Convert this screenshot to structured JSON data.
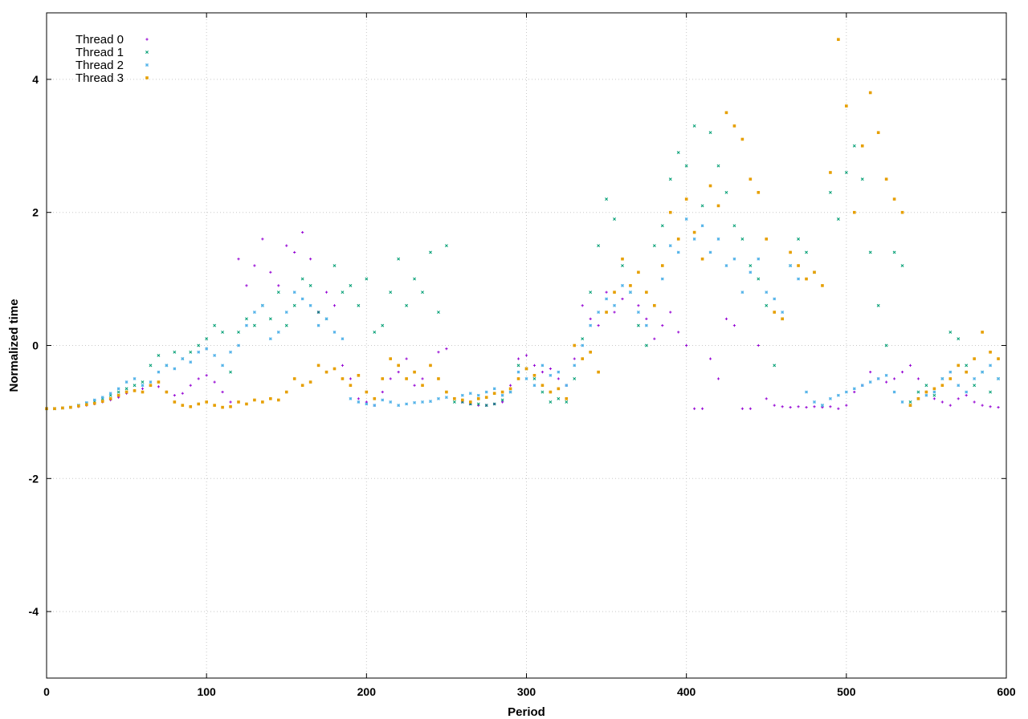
{
  "chart_data": {
    "type": "scatter",
    "title": "",
    "xlabel": "Period",
    "ylabel": "Normalized time",
    "xlim": [
      0,
      600
    ],
    "ylim": [
      -5,
      5
    ],
    "xticks": [
      0,
      100,
      200,
      300,
      400,
      500,
      600
    ],
    "yticks": [
      -4,
      -2,
      0,
      2,
      4
    ],
    "grid": true,
    "legend_position": "top-left",
    "series": [
      {
        "name": "Thread 0",
        "color": "#9400d3",
        "marker": "plus",
        "x": [
          0,
          5,
          10,
          15,
          20,
          25,
          30,
          35,
          40,
          45,
          50,
          55,
          60,
          65,
          70,
          75,
          80,
          85,
          90,
          95,
          100,
          105,
          110,
          115,
          120,
          125,
          130,
          135,
          140,
          145,
          150,
          155,
          160,
          165,
          170,
          175,
          180,
          185,
          190,
          195,
          200,
          205,
          210,
          215,
          220,
          225,
          230,
          235,
          240,
          245,
          250,
          255,
          260,
          265,
          270,
          275,
          280,
          285,
          290,
          295,
          300,
          305,
          310,
          315,
          320,
          325,
          330,
          335,
          340,
          345,
          350,
          355,
          360,
          365,
          370,
          375,
          380,
          385,
          390,
          395,
          400,
          405,
          410,
          415,
          420,
          425,
          430,
          435,
          440,
          445,
          450,
          455,
          460,
          465,
          470,
          475,
          480,
          485,
          490,
          495,
          500,
          505,
          510,
          515,
          520,
          525,
          530,
          535,
          540,
          545,
          550,
          555,
          560,
          565,
          570,
          575,
          580,
          585,
          590,
          595
        ],
        "y": [
          -0.95,
          -0.95,
          -0.94,
          -0.93,
          -0.92,
          -0.9,
          -0.88,
          -0.85,
          -0.82,
          -0.78,
          -0.72,
          -0.68,
          -0.65,
          -0.6,
          -0.62,
          -0.7,
          -0.75,
          -0.72,
          -0.6,
          -0.5,
          -0.45,
          -0.55,
          -0.7,
          -0.85,
          1.3,
          0.9,
          1.2,
          1.6,
          1.1,
          0.9,
          1.5,
          1.4,
          1.7,
          1.3,
          0.5,
          0.8,
          0.6,
          -0.3,
          -0.5,
          -0.8,
          -0.85,
          -0.9,
          -0.7,
          -0.5,
          -0.4,
          -0.2,
          -0.6,
          -0.5,
          -0.3,
          -0.1,
          -0.05,
          -0.8,
          -0.85,
          -0.88,
          -0.9,
          -0.9,
          -0.88,
          -0.85,
          -0.6,
          -0.2,
          -0.15,
          -0.3,
          -0.4,
          -0.35,
          -0.5,
          -0.6,
          -0.2,
          0.6,
          0.4,
          0.3,
          0.8,
          0.5,
          0.7,
          0.9,
          0.6,
          0.4,
          0.1,
          0.3,
          0.5,
          0.2,
          0.0,
          -0.95,
          -0.95,
          -0.2,
          -0.5,
          0.4,
          0.3,
          -0.95,
          -0.95,
          0.0,
          -0.8,
          -0.9,
          -0.92,
          -0.93,
          -0.92,
          -0.93,
          -0.92,
          -0.93,
          -0.92,
          -0.95,
          -0.9,
          -0.7,
          -0.6,
          -0.4,
          -0.5,
          -0.55,
          -0.5,
          -0.4,
          -0.3,
          -0.5,
          -0.7,
          -0.8,
          -0.85,
          -0.9,
          -0.8,
          -0.75,
          -0.85,
          -0.9,
          -0.92,
          -0.93
        ]
      },
      {
        "name": "Thread 1",
        "color": "#009e73",
        "marker": "cross",
        "x": [
          0,
          5,
          10,
          15,
          20,
          25,
          30,
          35,
          40,
          45,
          50,
          55,
          60,
          65,
          70,
          75,
          80,
          85,
          90,
          95,
          100,
          105,
          110,
          115,
          120,
          125,
          130,
          135,
          140,
          145,
          150,
          155,
          160,
          165,
          170,
          175,
          180,
          185,
          190,
          195,
          200,
          205,
          210,
          215,
          220,
          225,
          230,
          235,
          240,
          245,
          250,
          255,
          260,
          265,
          270,
          275,
          280,
          285,
          290,
          295,
          300,
          305,
          310,
          315,
          320,
          325,
          330,
          335,
          340,
          345,
          350,
          355,
          360,
          365,
          370,
          375,
          380,
          385,
          390,
          395,
          400,
          405,
          410,
          415,
          420,
          425,
          430,
          435,
          440,
          445,
          450,
          455,
          460,
          465,
          470,
          475,
          480,
          485,
          490,
          495,
          500,
          505,
          510,
          515,
          520,
          525,
          530,
          535,
          540,
          545,
          550,
          555,
          560,
          565,
          570,
          575,
          580,
          585,
          590,
          595
        ],
        "y": [
          -0.95,
          -0.95,
          -0.94,
          -0.93,
          -0.9,
          -0.87,
          -0.84,
          -0.8,
          -0.75,
          -0.7,
          -0.65,
          -0.6,
          -0.55,
          -0.3,
          -0.15,
          -0.3,
          -0.1,
          -0.2,
          -0.1,
          0.0,
          0.1,
          0.3,
          0.2,
          -0.4,
          0.2,
          0.4,
          0.3,
          0.6,
          0.4,
          0.8,
          0.3,
          0.6,
          1.0,
          0.9,
          0.5,
          0.4,
          1.2,
          0.8,
          0.9,
          0.6,
          1.0,
          0.2,
          0.3,
          0.8,
          1.3,
          0.6,
          1.0,
          0.8,
          1.4,
          0.5,
          1.5,
          -0.85,
          -0.85,
          -0.88,
          -0.88,
          -0.9,
          -0.88,
          -0.82,
          -0.7,
          -0.3,
          -0.35,
          -0.5,
          -0.7,
          -0.85,
          -0.8,
          -0.85,
          -0.5,
          0.1,
          0.8,
          1.5,
          2.2,
          1.9,
          1.2,
          0.8,
          0.3,
          0.0,
          1.5,
          1.8,
          2.5,
          2.9,
          2.7,
          3.3,
          2.1,
          3.2,
          2.7,
          2.3,
          1.8,
          1.6,
          1.2,
          1.0,
          0.6,
          -0.3,
          0.4,
          1.2,
          1.6,
          1.4,
          1.1,
          -0.9,
          2.3,
          1.9,
          2.6,
          3.0,
          2.5,
          1.4,
          0.6,
          0.0,
          1.4,
          1.2,
          -0.85,
          -0.7,
          -0.6,
          -0.75,
          -0.5,
          0.2,
          0.1,
          -0.3,
          -0.6,
          -0.4,
          -0.7,
          -0.5
        ]
      },
      {
        "name": "Thread 2",
        "color": "#56b4e9",
        "marker": "star",
        "x": [
          0,
          5,
          10,
          15,
          20,
          25,
          30,
          35,
          40,
          45,
          50,
          55,
          60,
          65,
          70,
          75,
          80,
          85,
          90,
          95,
          100,
          105,
          110,
          115,
          120,
          125,
          130,
          135,
          140,
          145,
          150,
          155,
          160,
          165,
          170,
          175,
          180,
          185,
          190,
          195,
          200,
          205,
          210,
          215,
          220,
          225,
          230,
          235,
          240,
          245,
          250,
          255,
          260,
          265,
          270,
          275,
          280,
          285,
          290,
          295,
          300,
          305,
          310,
          315,
          320,
          325,
          330,
          335,
          340,
          345,
          350,
          355,
          360,
          365,
          370,
          375,
          380,
          385,
          390,
          395,
          400,
          405,
          410,
          415,
          420,
          425,
          430,
          435,
          440,
          445,
          450,
          455,
          460,
          465,
          470,
          475,
          480,
          485,
          490,
          495,
          500,
          505,
          510,
          515,
          520,
          525,
          530,
          535,
          540,
          545,
          550,
          555,
          560,
          565,
          570,
          575,
          580,
          585,
          590,
          595
        ],
        "y": [
          -0.95,
          -0.95,
          -0.94,
          -0.93,
          -0.9,
          -0.86,
          -0.82,
          -0.78,
          -0.72,
          -0.65,
          -0.55,
          -0.5,
          -0.6,
          -0.55,
          -0.4,
          -0.3,
          -0.35,
          -0.2,
          -0.25,
          -0.1,
          -0.05,
          -0.15,
          -0.3,
          -0.1,
          0.0,
          0.3,
          0.5,
          0.6,
          0.1,
          0.2,
          0.5,
          0.8,
          0.7,
          0.6,
          0.3,
          0.4,
          0.2,
          0.1,
          -0.8,
          -0.85,
          -0.88,
          -0.9,
          -0.82,
          -0.85,
          -0.9,
          -0.88,
          -0.86,
          -0.85,
          -0.84,
          -0.8,
          -0.78,
          -0.8,
          -0.75,
          -0.72,
          -0.75,
          -0.7,
          -0.65,
          -0.75,
          -0.7,
          -0.4,
          -0.5,
          -0.6,
          -0.3,
          -0.45,
          -0.4,
          -0.6,
          -0.3,
          0.0,
          0.3,
          0.5,
          0.7,
          0.6,
          0.9,
          0.8,
          0.5,
          0.3,
          0.6,
          1.0,
          1.5,
          1.4,
          1.9,
          1.6,
          1.8,
          1.4,
          1.6,
          1.2,
          1.3,
          0.8,
          1.1,
          1.3,
          0.8,
          0.7,
          0.5,
          1.2,
          1.0,
          -0.7,
          -0.85,
          -0.9,
          -0.8,
          -0.75,
          -0.7,
          -0.65,
          -0.6,
          -0.55,
          -0.5,
          -0.45,
          -0.7,
          -0.85,
          -0.9,
          -0.8,
          -0.75,
          -0.7,
          -0.5,
          -0.4,
          -0.6,
          -0.7,
          -0.5,
          -0.4,
          -0.3,
          -0.5
        ]
      },
      {
        "name": "Thread 3",
        "color": "#e69f00",
        "marker": "square",
        "x": [
          0,
          5,
          10,
          15,
          20,
          25,
          30,
          35,
          40,
          45,
          50,
          55,
          60,
          65,
          70,
          75,
          80,
          85,
          90,
          95,
          100,
          105,
          110,
          115,
          120,
          125,
          130,
          135,
          140,
          145,
          150,
          155,
          160,
          165,
          170,
          175,
          180,
          185,
          190,
          195,
          200,
          205,
          210,
          215,
          220,
          225,
          230,
          235,
          240,
          245,
          250,
          255,
          260,
          265,
          270,
          275,
          280,
          285,
          290,
          295,
          300,
          305,
          310,
          315,
          320,
          325,
          330,
          335,
          340,
          345,
          350,
          355,
          360,
          365,
          370,
          375,
          380,
          385,
          390,
          395,
          400,
          405,
          410,
          415,
          420,
          425,
          430,
          435,
          440,
          445,
          450,
          455,
          460,
          465,
          470,
          475,
          480,
          485,
          490,
          495,
          500,
          505,
          510,
          515,
          520,
          525,
          530,
          535,
          540,
          545,
          550,
          555,
          560,
          565,
          570,
          575,
          580,
          585,
          590,
          595
        ],
        "y": [
          -0.95,
          -0.95,
          -0.94,
          -0.93,
          -0.91,
          -0.89,
          -0.87,
          -0.84,
          -0.8,
          -0.75,
          -0.7,
          -0.68,
          -0.7,
          -0.6,
          -0.55,
          -0.7,
          -0.85,
          -0.9,
          -0.92,
          -0.88,
          -0.85,
          -0.9,
          -0.93,
          -0.92,
          -0.85,
          -0.88,
          -0.82,
          -0.85,
          -0.8,
          -0.82,
          -0.7,
          -0.5,
          -0.6,
          -0.55,
          -0.3,
          -0.4,
          -0.35,
          -0.5,
          -0.6,
          -0.45,
          -0.7,
          -0.8,
          -0.5,
          -0.2,
          -0.3,
          -0.5,
          -0.4,
          -0.6,
          -0.3,
          -0.5,
          -0.7,
          -0.8,
          -0.82,
          -0.85,
          -0.8,
          -0.78,
          -0.72,
          -0.7,
          -0.65,
          -0.5,
          -0.35,
          -0.45,
          -0.6,
          -0.7,
          -0.65,
          -0.8,
          0.0,
          -0.2,
          -0.1,
          -0.4,
          0.5,
          0.8,
          1.3,
          0.9,
          1.1,
          0.8,
          0.6,
          1.2,
          2.0,
          1.6,
          2.2,
          1.7,
          1.3,
          2.4,
          2.1,
          3.5,
          3.3,
          3.1,
          2.5,
          2.3,
          1.6,
          0.5,
          0.4,
          1.4,
          1.2,
          1.0,
          1.1,
          0.9,
          2.6,
          4.6,
          3.6,
          2.0,
          3.0,
          3.8,
          3.2,
          2.5,
          2.2,
          2.0,
          -0.9,
          -0.8,
          -0.7,
          -0.65,
          -0.6,
          -0.5,
          -0.3,
          -0.4,
          -0.2,
          0.2,
          -0.1,
          -0.2
        ]
      }
    ]
  }
}
